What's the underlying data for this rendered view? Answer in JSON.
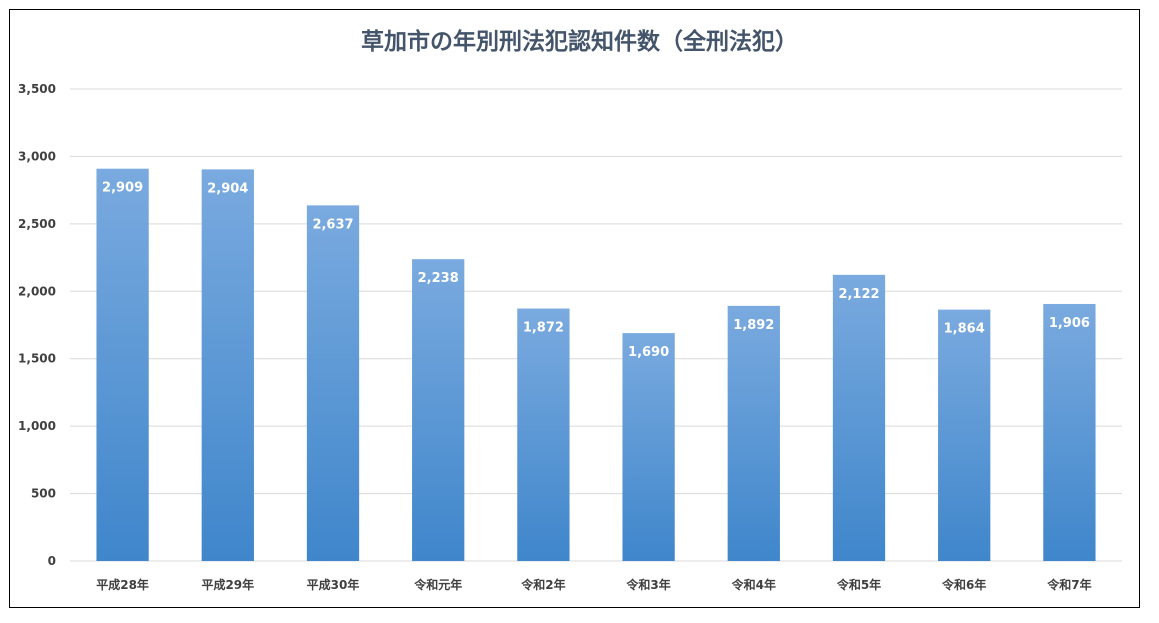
{
  "chart_data": {
    "type": "bar",
    "title": "草加市の年別刑法犯認知件数（全刑法犯）",
    "categories": [
      "平成28年",
      "平成29年",
      "平成30年",
      "令和元年",
      "令和2年",
      "令和3年",
      "令和4年",
      "令和5年",
      "令和6年",
      "令和7年"
    ],
    "values": [
      2909,
      2904,
      2637,
      2238,
      1872,
      1690,
      1892,
      2122,
      1864,
      1906
    ],
    "data_labels": [
      "2,909",
      "2,904",
      "2,637",
      "2,238",
      "1,872",
      "1,690",
      "1,892",
      "2,122",
      "1,864",
      "1,906"
    ],
    "yticks": [
      0,
      500,
      1000,
      1500,
      2000,
      2500,
      3000,
      3500
    ],
    "ytick_labels": [
      "0",
      "500",
      "1,000",
      "1,500",
      "2,000",
      "2,500",
      "3,000",
      "3,500"
    ],
    "ylim": [
      0,
      3500
    ],
    "xlabel": "",
    "ylabel": "",
    "grid": true,
    "legend": "none",
    "colors": {
      "bar_top": "#7aaadf",
      "bar_bottom": "#3f86cb",
      "grid": "#d9d9d9",
      "title": "#44546a"
    }
  }
}
